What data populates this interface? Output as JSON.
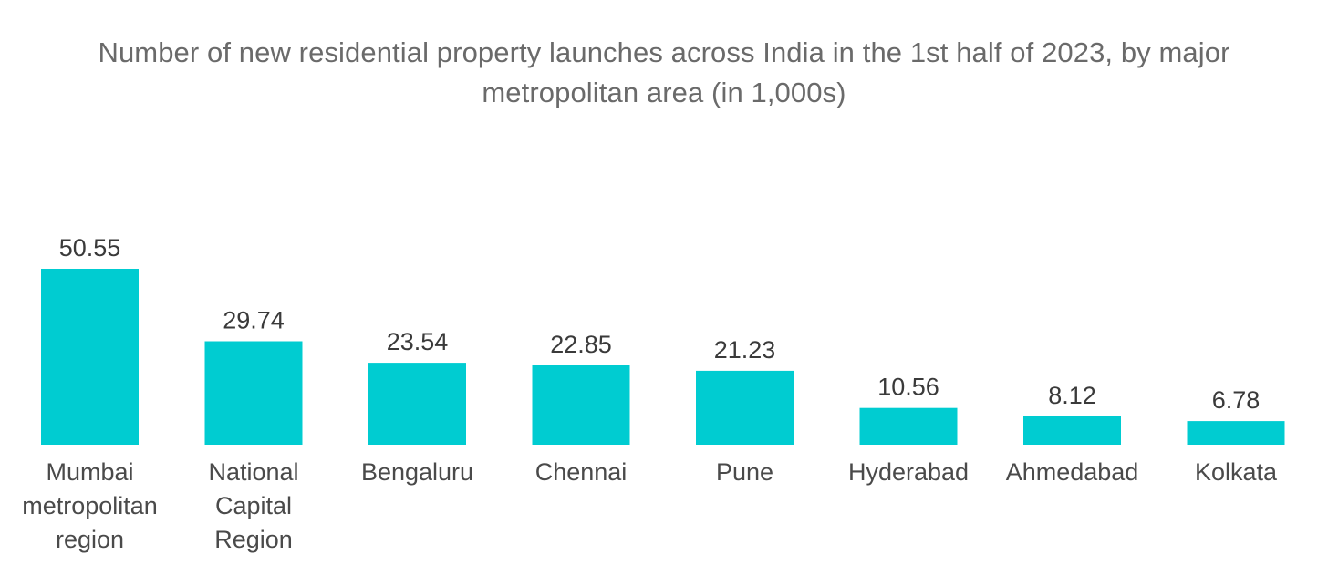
{
  "chart_data": {
    "type": "bar",
    "title_line1": "Number of new residential property launches across India in the 1st half of 2023, by major",
    "title_line2": "metropolitan area (in 1,000s)",
    "categories": [
      [
        "Mumbai",
        "metropolitan",
        "region"
      ],
      [
        "National",
        "Capital",
        "Region"
      ],
      [
        "Bengaluru"
      ],
      [
        "Chennai"
      ],
      [
        "Pune"
      ],
      [
        "Hyderabad"
      ],
      [
        "Ahmedabad"
      ],
      [
        "Kolkata"
      ]
    ],
    "values": [
      50.55,
      29.74,
      23.54,
      22.85,
      21.23,
      10.56,
      8.12,
      6.78
    ],
    "value_labels": [
      "50.55",
      "29.74",
      "23.54",
      "22.85",
      "21.23",
      "10.56",
      "8.12",
      "6.78"
    ],
    "bar_color": "#00ccd1",
    "xlabel": "",
    "ylabel": "",
    "ylim": [
      0,
      50.55
    ],
    "grid": false,
    "legend": "none"
  }
}
